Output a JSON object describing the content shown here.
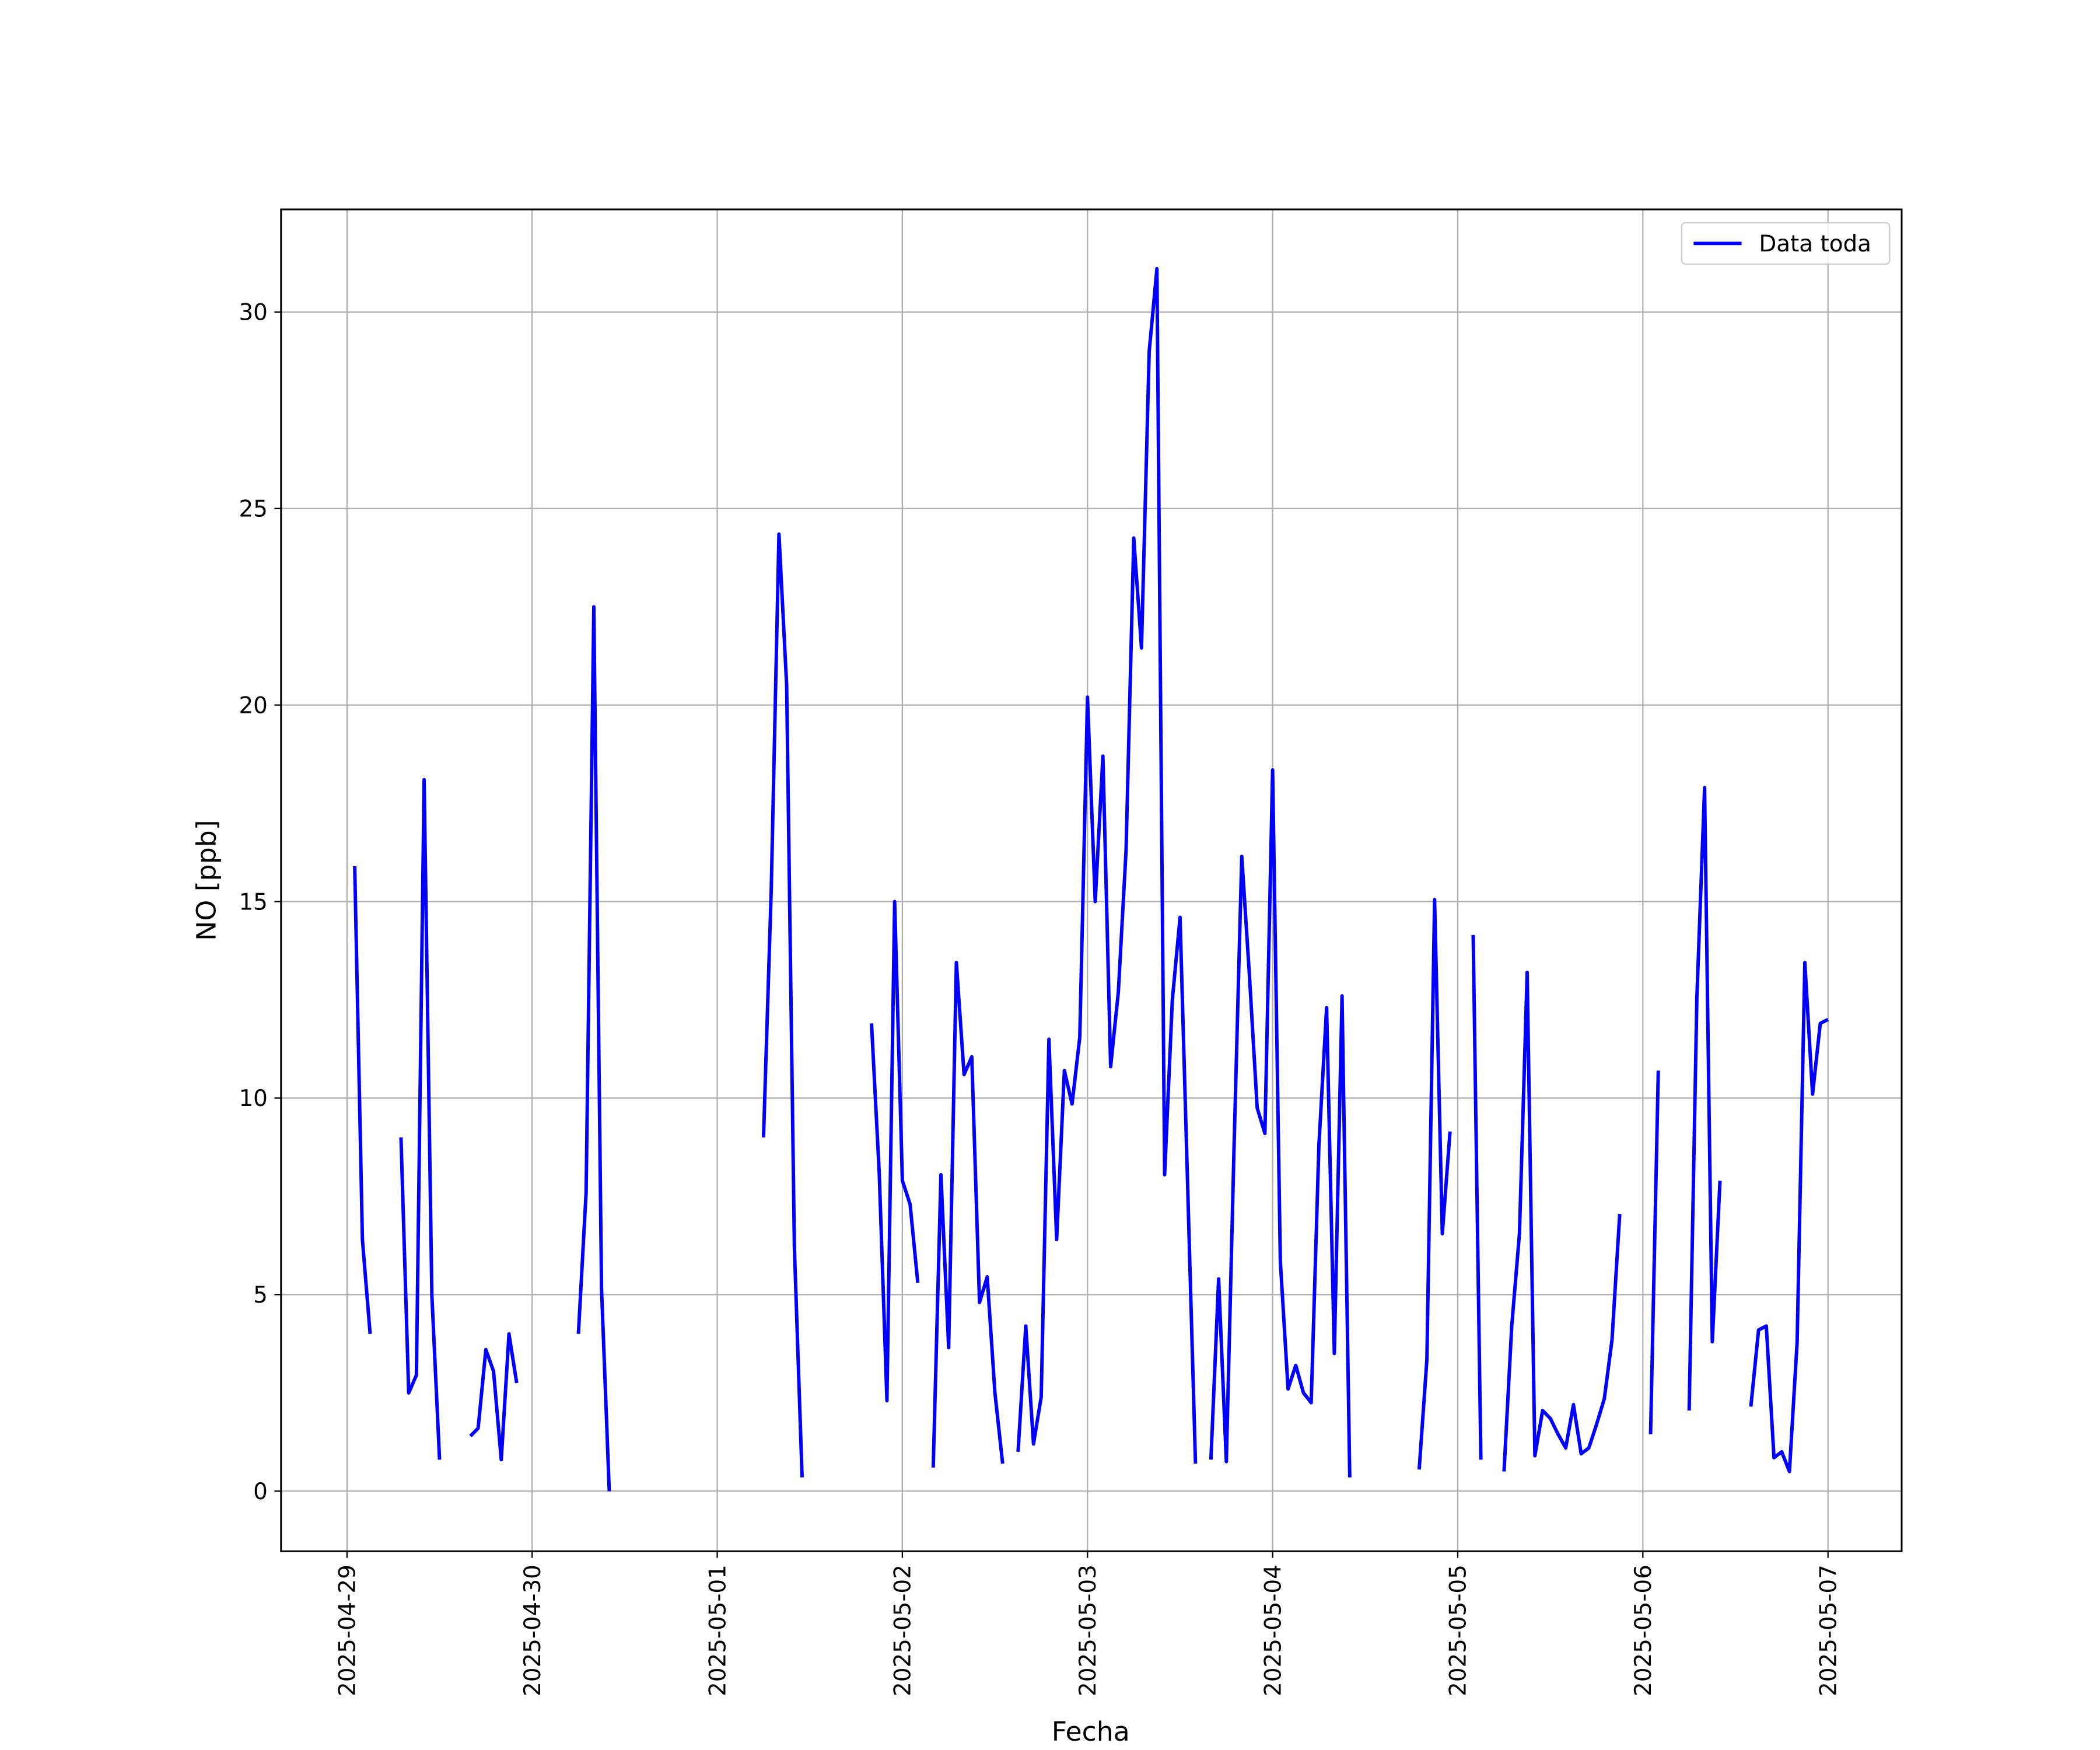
{
  "chart_data": {
    "type": "line",
    "xlabel": "Fecha",
    "ylabel": "NO [ppb]",
    "x": [
      "2025-04-29 01:00",
      "2025-04-29 02:00",
      "2025-04-29 03:00",
      "2025-04-29 04:00",
      "2025-04-29 07:00",
      "2025-04-29 08:00",
      "2025-04-29 09:00",
      "2025-04-29 10:00",
      "2025-04-29 11:00",
      "2025-04-29 12:00",
      "2025-04-29 13:00",
      "2025-04-29 16:00",
      "2025-04-29 17:00",
      "2025-04-29 18:00",
      "2025-04-29 19:00",
      "2025-04-29 20:00",
      "2025-04-29 21:00",
      "2025-04-29 22:00",
      "2025-04-29 23:00",
      "2025-04-30 06:00",
      "2025-04-30 07:00",
      "2025-04-30 08:00",
      "2025-04-30 09:00",
      "2025-04-30 10:00",
      "2025-04-30 11:00",
      "2025-05-01 06:00",
      "2025-05-01 07:00",
      "2025-05-01 08:00",
      "2025-05-01 09:00",
      "2025-05-01 10:00",
      "2025-05-01 11:00",
      "2025-05-01 12:00",
      "2025-05-01 20:00",
      "2025-05-01 21:00",
      "2025-05-01 22:00",
      "2025-05-01 23:00",
      "2025-05-02 00:00",
      "2025-05-02 01:00",
      "2025-05-02 02:00",
      "2025-05-02 03:00",
      "2025-05-02 04:00",
      "2025-05-02 05:00",
      "2025-05-02 06:00",
      "2025-05-02 07:00",
      "2025-05-02 08:00",
      "2025-05-02 09:00",
      "2025-05-02 10:00",
      "2025-05-02 11:00",
      "2025-05-02 12:00",
      "2025-05-02 13:00",
      "2025-05-02 14:00",
      "2025-05-02 15:00",
      "2025-05-02 16:00",
      "2025-05-02 17:00",
      "2025-05-02 18:00",
      "2025-05-02 19:00",
      "2025-05-02 20:00",
      "2025-05-02 21:00",
      "2025-05-02 22:00",
      "2025-05-02 23:00",
      "2025-05-03 00:00",
      "2025-05-03 01:00",
      "2025-05-03 02:00",
      "2025-05-03 03:00",
      "2025-05-03 04:00",
      "2025-05-03 05:00",
      "2025-05-03 06:00",
      "2025-05-03 07:00",
      "2025-05-03 08:00",
      "2025-05-03 09:00",
      "2025-05-03 10:00",
      "2025-05-03 11:00",
      "2025-05-03 12:00",
      "2025-05-03 13:00",
      "2025-05-03 14:00",
      "2025-05-03 15:00",
      "2025-05-03 16:00",
      "2025-05-03 17:00",
      "2025-05-03 18:00",
      "2025-05-03 19:00",
      "2025-05-03 20:00",
      "2025-05-03 21:00",
      "2025-05-03 22:00",
      "2025-05-03 23:00",
      "2025-05-04 00:00",
      "2025-05-04 01:00",
      "2025-05-04 02:00",
      "2025-05-04 03:00",
      "2025-05-04 04:00",
      "2025-05-04 05:00",
      "2025-05-04 06:00",
      "2025-05-04 07:00",
      "2025-05-04 08:00",
      "2025-05-04 09:00",
      "2025-05-04 10:00",
      "2025-05-04 11:00",
      "2025-05-04 19:00",
      "2025-05-04 20:00",
      "2025-05-04 21:00",
      "2025-05-04 22:00",
      "2025-05-04 23:00",
      "2025-05-05 00:00",
      "2025-05-05 02:00",
      "2025-05-05 03:00",
      "2025-05-05 04:00",
      "2025-05-05 06:00",
      "2025-05-05 07:00",
      "2025-05-05 08:00",
      "2025-05-05 09:00",
      "2025-05-05 10:00",
      "2025-05-05 11:00",
      "2025-05-05 12:00",
      "2025-05-05 13:00",
      "2025-05-05 14:00",
      "2025-05-05 15:00",
      "2025-05-05 16:00",
      "2025-05-05 17:00",
      "2025-05-05 18:00",
      "2025-05-05 19:00",
      "2025-05-05 20:00",
      "2025-05-05 21:00",
      "2025-05-05 22:00",
      "2025-05-06 01:00",
      "2025-05-06 02:00",
      "2025-05-06 03:00",
      "2025-05-06 06:00",
      "2025-05-06 07:00",
      "2025-05-06 08:00",
      "2025-05-06 09:00",
      "2025-05-06 10:00",
      "2025-05-06 11:00",
      "2025-05-06 14:00",
      "2025-05-06 15:00",
      "2025-05-06 16:00",
      "2025-05-06 17:00",
      "2025-05-06 18:00",
      "2025-05-06 19:00",
      "2025-05-06 20:00",
      "2025-05-06 21:00",
      "2025-05-06 22:00",
      "2025-05-06 23:00",
      "2025-05-07 00:00"
    ],
    "series": [
      {
        "name": "Data toda",
        "color": "#0000ff",
        "values": [
          15.9,
          6.4,
          4.0,
          null,
          9.0,
          2.5,
          2.95,
          18.1,
          5.0,
          0.8,
          null,
          1.4,
          1.6,
          3.6,
          3.05,
          0.8,
          4.0,
          2.75,
          null,
          4.0,
          7.6,
          22.5,
          5.15,
          0.0,
          null,
          9.0,
          15.3,
          24.35,
          20.5,
          6.2,
          0.35,
          null,
          11.9,
          8.1,
          2.3,
          15.0,
          7.9,
          7.3,
          5.3,
          null,
          0.6,
          8.05,
          3.65,
          13.45,
          10.6,
          11.05,
          4.8,
          5.45,
          2.5,
          0.7,
          null,
          1.0,
          4.2,
          1.2,
          2.4,
          11.5,
          6.4,
          10.7,
          9.85,
          11.55,
          20.2,
          15.0,
          18.7,
          10.8,
          12.7,
          16.3,
          24.25,
          21.45,
          29.0,
          31.1,
          8.05,
          12.5,
          14.6,
          7.65,
          0.7,
          null,
          0.8,
          5.4,
          0.75,
          8.75,
          16.15,
          13.1,
          9.75,
          9.1,
          18.35,
          5.85,
          2.6,
          3.2,
          2.5,
          2.25,
          8.8,
          12.3,
          3.5,
          12.6,
          0.35,
          null,
          0.55,
          3.35,
          15.05,
          6.55,
          9.15,
          null,
          14.15,
          0.8,
          null,
          0.5,
          4.2,
          6.55,
          13.2,
          0.9,
          2.05,
          1.85,
          1.45,
          1.1,
          2.2,
          0.95,
          1.1,
          1.7,
          2.35,
          3.85,
          7.05,
          null,
          1.45,
          10.7,
          null,
          2.05,
          12.55,
          17.9,
          3.8,
          7.9,
          null,
          2.15,
          4.1,
          4.2,
          0.85,
          1.0,
          0.5,
          3.8,
          13.45,
          10.1,
          11.9,
          12.0
        ]
      }
    ],
    "xlim": [
      "2025-04-28 15:27",
      "2025-05-07 09:33"
    ],
    "xticks": [
      "2025-04-29",
      "2025-04-30",
      "2025-05-01",
      "2025-05-02",
      "2025-05-03",
      "2025-05-04",
      "2025-05-05",
      "2025-05-06",
      "2025-05-07"
    ],
    "ylim": [
      -1.53,
      32.61
    ],
    "yticks": [
      0,
      5,
      10,
      15,
      20,
      25,
      30
    ],
    "grid": true,
    "legend": "upper right"
  }
}
